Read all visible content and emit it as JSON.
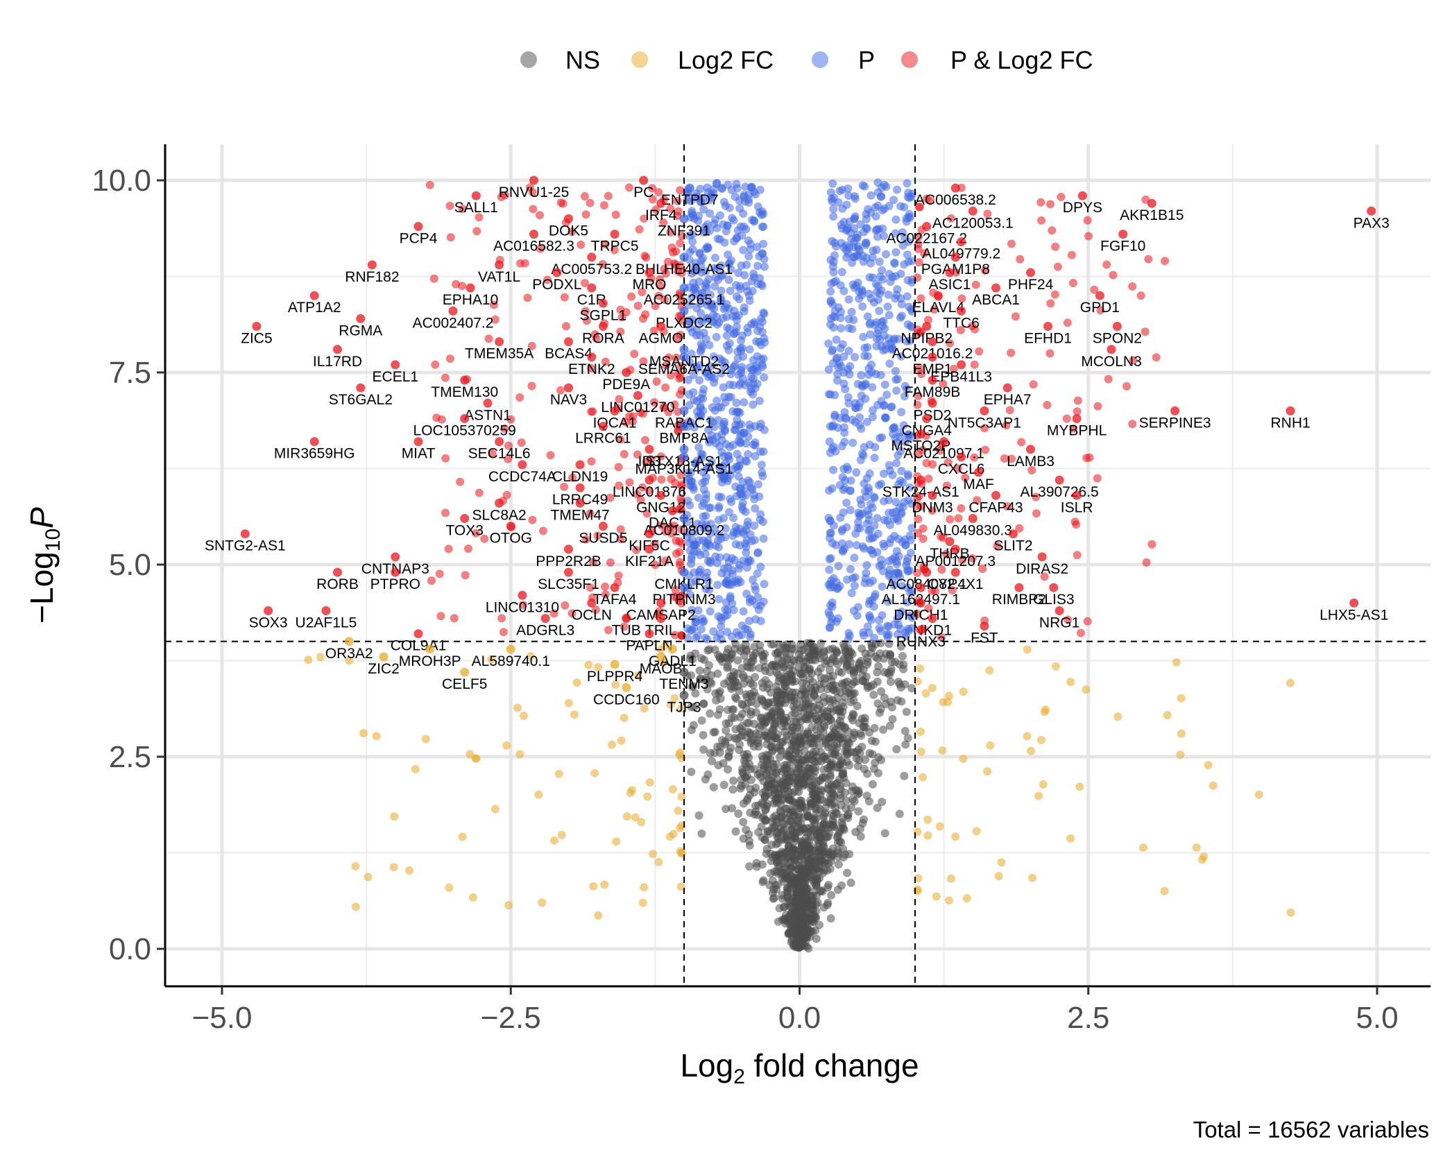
{
  "chart_data": {
    "type": "scatter",
    "title": "",
    "xlabel_main": "Log",
    "xlabel_sub": "2",
    "xlabel_rest": " fold change",
    "ylabel_pre": "−Log",
    "ylabel_sub": "10",
    "ylabel_p": "P",
    "caption": "Total = 16562 variables",
    "xlim": [
      -5.5,
      5.5
    ],
    "ylim": [
      -0.5,
      10.5
    ],
    "x_ticks": [
      -5,
      -2.5,
      0,
      2.5,
      5
    ],
    "x_tick_labels": [
      "−5.0",
      "−2.5",
      "0.0",
      "2.5",
      "5.0"
    ],
    "y_ticks": [
      0,
      2.5,
      5,
      7.5,
      10
    ],
    "y_tick_labels": [
      "0.0",
      "2.5",
      "5.0",
      "7.5",
      "10.0"
    ],
    "fc_cutoff": 1,
    "p_cutoff": 4,
    "grid": true,
    "legend_position": "top",
    "legend": [
      {
        "label": "NS",
        "color": "#4d4d4d"
      },
      {
        "label": "Log2 FC",
        "color": "#e8a92a"
      },
      {
        "label": "P",
        "color": "#4169e1"
      },
      {
        "label": "P & Log2 FC",
        "color": "#e8161c"
      }
    ],
    "labeled_genes": [
      {
        "name": "PAX3",
        "x": 4.95,
        "y": 9.6
      },
      {
        "name": "AKR1B15",
        "x": 3.05,
        "y": 9.7
      },
      {
        "name": "DPYS",
        "x": 2.45,
        "y": 9.8
      },
      {
        "name": "FGF10",
        "x": 2.8,
        "y": 9.3
      },
      {
        "name": "AC006538.2",
        "x": 1.35,
        "y": 9.9
      },
      {
        "name": "AC120053.1",
        "x": 1.5,
        "y": 9.6
      },
      {
        "name": "AC022167.2",
        "x": 1.1,
        "y": 9.4
      },
      {
        "name": "AL049779.2",
        "x": 1.4,
        "y": 9.2
      },
      {
        "name": "PGAM1P8",
        "x": 1.35,
        "y": 9.0
      },
      {
        "name": "ASIC1",
        "x": 1.3,
        "y": 8.8
      },
      {
        "name": "PHF24",
        "x": 2.0,
        "y": 8.8
      },
      {
        "name": "ABCA1",
        "x": 1.7,
        "y": 8.6
      },
      {
        "name": "ELAVL4",
        "x": 1.2,
        "y": 8.5
      },
      {
        "name": "TTC6",
        "x": 1.4,
        "y": 8.3
      },
      {
        "name": "GPD1",
        "x": 2.6,
        "y": 8.5
      },
      {
        "name": "NPIPB2",
        "x": 1.1,
        "y": 8.1
      },
      {
        "name": "AC021016.2",
        "x": 1.15,
        "y": 7.9
      },
      {
        "name": "EFHD1",
        "x": 2.15,
        "y": 8.1
      },
      {
        "name": "SPON2",
        "x": 2.75,
        "y": 8.1
      },
      {
        "name": "EMP1",
        "x": 1.15,
        "y": 7.7
      },
      {
        "name": "MCOLN3",
        "x": 2.7,
        "y": 7.8
      },
      {
        "name": "EPB41L3",
        "x": 1.4,
        "y": 7.6
      },
      {
        "name": "FAM89B",
        "x": 1.15,
        "y": 7.4
      },
      {
        "name": "EPHA7",
        "x": 1.8,
        "y": 7.3
      },
      {
        "name": "PSD2",
        "x": 1.15,
        "y": 7.1
      },
      {
        "name": "NT5C3AP1",
        "x": 1.6,
        "y": 7.0
      },
      {
        "name": "CNGA4",
        "x": 1.1,
        "y": 6.9
      },
      {
        "name": "MSTO2P",
        "x": 1.05,
        "y": 6.7
      },
      {
        "name": "MYBPHL",
        "x": 2.4,
        "y": 6.9
      },
      {
        "name": "SERPINE3",
        "x": 3.25,
        "y": 7.0
      },
      {
        "name": "RNH1",
        "x": 4.25,
        "y": 7.0
      },
      {
        "name": "AC021097.1",
        "x": 1.25,
        "y": 6.6
      },
      {
        "name": "CXCL6",
        "x": 1.4,
        "y": 6.4
      },
      {
        "name": "LAMB3",
        "x": 2.0,
        "y": 6.5
      },
      {
        "name": "MAF",
        "x": 1.55,
        "y": 6.2
      },
      {
        "name": "AL390726.5",
        "x": 2.25,
        "y": 6.1
      },
      {
        "name": "STK24-AS1",
        "x": 1.05,
        "y": 6.1
      },
      {
        "name": "DNM3",
        "x": 1.15,
        "y": 5.9
      },
      {
        "name": "CFAP43",
        "x": 1.7,
        "y": 5.9
      },
      {
        "name": "ISLR",
        "x": 2.4,
        "y": 5.9
      },
      {
        "name": "AL049830.3",
        "x": 1.5,
        "y": 5.6
      },
      {
        "name": "SLIT2",
        "x": 1.85,
        "y": 5.4
      },
      {
        "name": "THRB",
        "x": 1.3,
        "y": 5.3
      },
      {
        "name": "AP001207.3",
        "x": 1.35,
        "y": 5.2
      },
      {
        "name": "CYP4X1",
        "x": 1.35,
        "y": 4.9
      },
      {
        "name": "DIRAS2",
        "x": 2.1,
        "y": 5.1
      },
      {
        "name": "AC084082.1",
        "x": 1.1,
        "y": 4.9
      },
      {
        "name": "GLIS3",
        "x": 2.2,
        "y": 4.7
      },
      {
        "name": "AL162497.1",
        "x": 1.05,
        "y": 4.7
      },
      {
        "name": "RIMBP2",
        "x": 1.9,
        "y": 4.7
      },
      {
        "name": "DRICH1",
        "x": 1.05,
        "y": 4.5
      },
      {
        "name": "LHX5-AS1",
        "x": 4.8,
        "y": 4.5
      },
      {
        "name": "NKD1",
        "x": 1.15,
        "y": 4.3
      },
      {
        "name": "NRG1",
        "x": 2.25,
        "y": 4.4
      },
      {
        "name": "RUNX3",
        "x": 1.05,
        "y": 4.15
      },
      {
        "name": "FST",
        "x": 1.6,
        "y": 4.2
      },
      {
        "name": "RNVU1-25",
        "x": -2.3,
        "y": 10.0
      },
      {
        "name": "PC",
        "x": -1.35,
        "y": 10.0
      },
      {
        "name": "ENTPD7",
        "x": -0.95,
        "y": 9.9
      },
      {
        "name": "SALL1",
        "x": -2.8,
        "y": 9.8
      },
      {
        "name": "IRF4",
        "x": -1.2,
        "y": 9.7
      },
      {
        "name": "ZNF391",
        "x": -1.0,
        "y": 9.5
      },
      {
        "name": "PCP4",
        "x": -3.3,
        "y": 9.4
      },
      {
        "name": "DOK5",
        "x": -2.0,
        "y": 9.5
      },
      {
        "name": "AC016582.3",
        "x": -2.3,
        "y": 9.3
      },
      {
        "name": "TRPC5",
        "x": -1.6,
        "y": 9.3
      },
      {
        "name": "AC005753.2",
        "x": -1.8,
        "y": 9.0
      },
      {
        "name": "BHLHE40-AS1",
        "x": -1.0,
        "y": 9.0
      },
      {
        "name": "RNF182",
        "x": -3.7,
        "y": 8.9
      },
      {
        "name": "VAT1L",
        "x": -2.6,
        "y": 8.9
      },
      {
        "name": "PODXL",
        "x": -2.1,
        "y": 8.8
      },
      {
        "name": "MRO",
        "x": -1.3,
        "y": 8.8
      },
      {
        "name": "EPHA10",
        "x": -2.85,
        "y": 8.6
      },
      {
        "name": "C1R",
        "x": -1.8,
        "y": 8.6
      },
      {
        "name": "AC025265.1",
        "x": -1.0,
        "y": 8.6
      },
      {
        "name": "ATP1A2",
        "x": -4.2,
        "y": 8.5
      },
      {
        "name": "SGPL1",
        "x": -1.7,
        "y": 8.4
      },
      {
        "name": "PLXDC2",
        "x": -1.0,
        "y": 8.3
      },
      {
        "name": "RGMA",
        "x": -3.8,
        "y": 8.2
      },
      {
        "name": "AC002407.2",
        "x": -3.0,
        "y": 8.3
      },
      {
        "name": "RORA",
        "x": -1.7,
        "y": 8.1
      },
      {
        "name": "AGMO",
        "x": -1.2,
        "y": 8.1
      },
      {
        "name": "ZIC5",
        "x": -4.7,
        "y": 8.1
      },
      {
        "name": "BCAS4",
        "x": -2.0,
        "y": 7.9
      },
      {
        "name": "MSANTD2",
        "x": -1.0,
        "y": 7.8
      },
      {
        "name": "IL17RD",
        "x": -4.0,
        "y": 7.8
      },
      {
        "name": "TMEM35A",
        "x": -2.6,
        "y": 7.9
      },
      {
        "name": "ETNK2",
        "x": -1.8,
        "y": 7.7
      },
      {
        "name": "SEMA6A-AS2",
        "x": -1.0,
        "y": 7.7
      },
      {
        "name": "ECEL1",
        "x": -3.5,
        "y": 7.6
      },
      {
        "name": "PDE9A",
        "x": -1.5,
        "y": 7.5
      },
      {
        "name": "TMEM130",
        "x": -2.9,
        "y": 7.4
      },
      {
        "name": "NAV3",
        "x": -2.0,
        "y": 7.3
      },
      {
        "name": "ST6GAL2",
        "x": -3.8,
        "y": 7.3
      },
      {
        "name": "LINC01270",
        "x": -1.4,
        "y": 7.2
      },
      {
        "name": "ASTN1",
        "x": -2.7,
        "y": 7.1
      },
      {
        "name": "IQCA1",
        "x": -1.6,
        "y": 7.0
      },
      {
        "name": "RABAC1",
        "x": -1.0,
        "y": 7.0
      },
      {
        "name": "LOC105370259",
        "x": -2.9,
        "y": 6.9
      },
      {
        "name": "LRRC61",
        "x": -1.7,
        "y": 6.8
      },
      {
        "name": "BMP8A",
        "x": -1.0,
        "y": 6.8
      },
      {
        "name": "SEC14L6",
        "x": -2.6,
        "y": 6.6
      },
      {
        "name": "ID3",
        "x": -1.3,
        "y": 6.5
      },
      {
        "name": "STX18-AS1",
        "x": -1.0,
        "y": 6.5
      },
      {
        "name": "MIAT",
        "x": -3.3,
        "y": 6.6
      },
      {
        "name": "MAP3K14-AS1",
        "x": -1.0,
        "y": 6.4
      },
      {
        "name": "CLDN19",
        "x": -1.9,
        "y": 6.3
      },
      {
        "name": "CCDC74A",
        "x": -2.4,
        "y": 6.3
      },
      {
        "name": "MIR3659HG",
        "x": -4.2,
        "y": 6.6
      },
      {
        "name": "LINC01876",
        "x": -1.3,
        "y": 6.1
      },
      {
        "name": "LRRC49",
        "x": -1.9,
        "y": 6.0
      },
      {
        "name": "GNG12",
        "x": -1.2,
        "y": 5.9
      },
      {
        "name": "SLC8A2",
        "x": -2.6,
        "y": 5.8
      },
      {
        "name": "TMEM47",
        "x": -1.9,
        "y": 5.8
      },
      {
        "name": "DACT1",
        "x": -1.1,
        "y": 5.7
      },
      {
        "name": "TOX3",
        "x": -2.9,
        "y": 5.6
      },
      {
        "name": "SUSD5",
        "x": -1.7,
        "y": 5.5
      },
      {
        "name": "AC010809.2",
        "x": -1.0,
        "y": 5.6
      },
      {
        "name": "OTOG",
        "x": -2.5,
        "y": 5.5
      },
      {
        "name": "KIF5C",
        "x": -1.3,
        "y": 5.4
      },
      {
        "name": "SNTG2-AS1",
        "x": -4.8,
        "y": 5.4
      },
      {
        "name": "PPP2R2B",
        "x": -2.0,
        "y": 5.2
      },
      {
        "name": "KIF21A",
        "x": -1.3,
        "y": 5.2
      },
      {
        "name": "CNTNAP3",
        "x": -3.5,
        "y": 5.1
      },
      {
        "name": "RORB",
        "x": -4.0,
        "y": 4.9
      },
      {
        "name": "PTPRO",
        "x": -3.5,
        "y": 4.9
      },
      {
        "name": "SLC35F1",
        "x": -2.0,
        "y": 4.9
      },
      {
        "name": "CMKLR1",
        "x": -1.0,
        "y": 4.9
      },
      {
        "name": "TAFA4",
        "x": -1.6,
        "y": 4.7
      },
      {
        "name": "PITPNM3",
        "x": -1.0,
        "y": 4.7
      },
      {
        "name": "LINC01310",
        "x": -2.4,
        "y": 4.6
      },
      {
        "name": "OCLN",
        "x": -1.8,
        "y": 4.5
      },
      {
        "name": "CAMSAP2",
        "x": -1.2,
        "y": 4.5
      },
      {
        "name": "SOX3",
        "x": -4.6,
        "y": 4.4
      },
      {
        "name": "U2AF1L5",
        "x": -4.1,
        "y": 4.4
      },
      {
        "name": "ADGRL3",
        "x": -2.2,
        "y": 4.3
      },
      {
        "name": "TUB",
        "x": -1.5,
        "y": 4.3
      },
      {
        "name": "TRIL",
        "x": -1.2,
        "y": 4.3
      },
      {
        "name": "COL9A1",
        "x": -3.3,
        "y": 4.1
      },
      {
        "name": "PAPLN",
        "x": -1.3,
        "y": 4.1
      },
      {
        "name": "OR3A2",
        "x": -3.9,
        "y": 4.0
      },
      {
        "name": "MROH3P",
        "x": -3.2,
        "y": 3.9
      },
      {
        "name": "GADL1",
        "x": -1.1,
        "y": 3.9
      },
      {
        "name": "AL589740.1",
        "x": -2.5,
        "y": 3.9
      },
      {
        "name": "ZIC2",
        "x": -3.6,
        "y": 3.8
      },
      {
        "name": "MAOB",
        "x": -1.2,
        "y": 3.8
      },
      {
        "name": "PLPPR4",
        "x": -1.6,
        "y": 3.7
      },
      {
        "name": "TENM3",
        "x": -1.0,
        "y": 3.6
      },
      {
        "name": "CELF5",
        "x": -2.9,
        "y": 3.6
      },
      {
        "name": "CCDC160",
        "x": -1.5,
        "y": 3.4
      },
      {
        "name": "TJP3",
        "x": -1.0,
        "y": 3.3
      }
    ]
  }
}
